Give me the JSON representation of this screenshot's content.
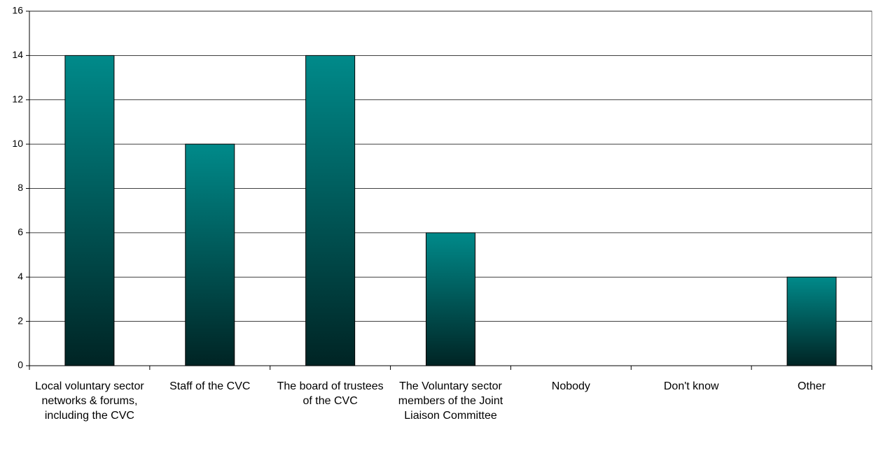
{
  "chart_data": {
    "type": "bar",
    "categories": [
      "Local voluntary sector networks & forums, including the CVC",
      "Staff of the CVC",
      "The board of trustees of the CVC",
      "The Voluntary sector members of the Joint Liaison Committee",
      "Nobody",
      "Don't know",
      "Other"
    ],
    "values": [
      14,
      10,
      14,
      6,
      0,
      0,
      4
    ],
    "color": {
      "top": "#008a8a",
      "bottom": "#002424"
    },
    "ylim": [
      0,
      16
    ],
    "yticks": [
      0,
      2,
      4,
      6,
      8,
      10,
      12,
      14,
      16
    ],
    "grid": true
  }
}
